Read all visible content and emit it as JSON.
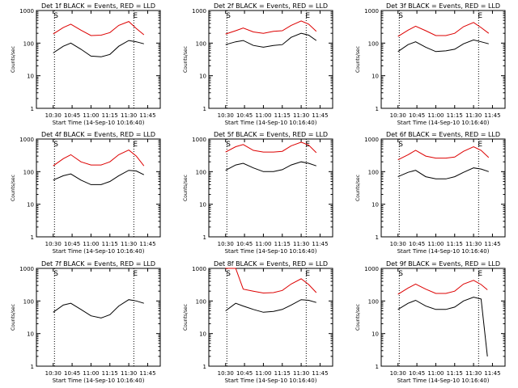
{
  "colors": {
    "background": "#ffffff",
    "axis": "#000000",
    "events": "#000000",
    "lld": "#dd0000"
  },
  "x_tick_labels": [
    "10:30",
    "10:45",
    "11:00",
    "11:15",
    "11:30",
    "11:45"
  ],
  "y_tick_labels": [
    "1",
    "10",
    "100",
    "1000"
  ],
  "ylabel": "Counts/sec",
  "xlabel": "Start Time (14-Sep-10 10:16:40)",
  "marker_labels": {
    "start": "S",
    "end": "E"
  },
  "chart_data": [
    {
      "type": "line",
      "title": "Det 1f  BLACK = Events, RED = LLD",
      "ylog": true,
      "ylim": [
        1,
        1000
      ],
      "x": [
        "10:30",
        "10:38",
        "10:44",
        "10:52",
        "11:00",
        "11:08",
        "11:15",
        "11:22",
        "11:30",
        "11:36",
        "11:42"
      ],
      "series": [
        {
          "name": "Events",
          "color": "#000000",
          "values": [
            50,
            80,
            100,
            65,
            40,
            38,
            45,
            80,
            120,
            110,
            95
          ]
        },
        {
          "name": "LLD",
          "color": "#dd0000",
          "values": [
            190,
            300,
            380,
            250,
            170,
            175,
            210,
            350,
            460,
            280,
            180
          ]
        }
      ]
    },
    {
      "type": "line",
      "title": "Det 2f  BLACK = Events, RED = LLD",
      "ylog": true,
      "ylim": [
        1,
        1000
      ],
      "x": [
        "10:30",
        "10:38",
        "10:44",
        "10:52",
        "11:00",
        "11:08",
        "11:15",
        "11:22",
        "11:30",
        "11:36",
        "11:42"
      ],
      "series": [
        {
          "name": "Events",
          "color": "#000000",
          "values": [
            90,
            110,
            120,
            85,
            75,
            85,
            90,
            150,
            200,
            175,
            120
          ]
        },
        {
          "name": "LLD",
          "color": "#dd0000",
          "values": [
            190,
            240,
            290,
            220,
            200,
            230,
            240,
            350,
            480,
            380,
            230
          ]
        }
      ]
    },
    {
      "type": "line",
      "title": "Det 3f  BLACK = Events, RED = LLD",
      "ylog": true,
      "ylim": [
        1,
        1000
      ],
      "x": [
        "10:30",
        "10:38",
        "10:44",
        "10:52",
        "11:00",
        "11:08",
        "11:15",
        "11:22",
        "11:30",
        "11:36",
        "11:42"
      ],
      "series": [
        {
          "name": "Events",
          "color": "#000000",
          "values": [
            55,
            90,
            110,
            75,
            55,
            58,
            65,
            95,
            125,
            110,
            95
          ]
        },
        {
          "name": "LLD",
          "color": "#dd0000",
          "values": [
            160,
            250,
            330,
            240,
            170,
            170,
            200,
            320,
            430,
            300,
            200
          ]
        }
      ]
    },
    {
      "type": "line",
      "title": "Det 4f  BLACK = Events, RED = LLD",
      "ylog": true,
      "ylim": [
        1,
        1000
      ],
      "x": [
        "10:30",
        "10:38",
        "10:44",
        "10:52",
        "11:00",
        "11:08",
        "11:15",
        "11:22",
        "11:30",
        "11:36",
        "11:42"
      ],
      "series": [
        {
          "name": "Events",
          "color": "#000000",
          "values": [
            55,
            75,
            85,
            55,
            40,
            40,
            50,
            75,
            110,
            105,
            80
          ]
        },
        {
          "name": "LLD",
          "color": "#dd0000",
          "values": [
            150,
            250,
            330,
            200,
            160,
            160,
            200,
            330,
            460,
            300,
            150
          ]
        }
      ]
    },
    {
      "type": "line",
      "title": "Det 5f  BLACK = Events, RED = LLD",
      "ylog": true,
      "ylim": [
        1,
        1000
      ],
      "x": [
        "10:30",
        "10:38",
        "10:44",
        "10:52",
        "11:00",
        "11:08",
        "11:15",
        "11:22",
        "11:30",
        "11:36",
        "11:42"
      ],
      "series": [
        {
          "name": "Events",
          "color": "#000000",
          "values": [
            110,
            160,
            180,
            130,
            100,
            100,
            115,
            160,
            200,
            180,
            150
          ]
        },
        {
          "name": "LLD",
          "color": "#dd0000",
          "values": [
            400,
            580,
            680,
            450,
            400,
            400,
            420,
            620,
            800,
            650,
            380
          ]
        }
      ]
    },
    {
      "type": "line",
      "title": "Det 6f  BLACK = Events, RED = LLD",
      "ylog": true,
      "ylim": [
        1,
        1000
      ],
      "x": [
        "10:30",
        "10:38",
        "10:44",
        "10:52",
        "11:00",
        "11:08",
        "11:15",
        "11:22",
        "11:30",
        "11:36",
        "11:42"
      ],
      "series": [
        {
          "name": "Events",
          "color": "#000000",
          "values": [
            70,
            95,
            110,
            70,
            60,
            60,
            70,
            95,
            130,
            120,
            100
          ]
        },
        {
          "name": "LLD",
          "color": "#dd0000",
          "values": [
            230,
            330,
            450,
            300,
            260,
            260,
            280,
            420,
            580,
            450,
            270
          ]
        }
      ]
    },
    {
      "type": "line",
      "title": "Det 7f  BLACK = Events, RED = LLD",
      "ylog": true,
      "ylim": [
        1,
        1000
      ],
      "x": [
        "10:30",
        "10:38",
        "10:44",
        "10:52",
        "11:00",
        "11:08",
        "11:15",
        "11:22",
        "11:30",
        "11:36",
        "11:42"
      ],
      "series": [
        {
          "name": "Events",
          "color": "#000000",
          "values": [
            45,
            75,
            85,
            55,
            35,
            30,
            38,
            70,
            110,
            100,
            85
          ]
        }
      ]
    },
    {
      "type": "line",
      "title": "Det 8f  BLACK = Events, RED = LLD",
      "ylog": true,
      "ylim": [
        1,
        1000
      ],
      "x": [
        "10:30",
        "10:38",
        "10:44",
        "10:52",
        "11:00",
        "11:08",
        "11:15",
        "11:22",
        "11:30",
        "11:36",
        "11:42"
      ],
      "series": [
        {
          "name": "Events",
          "color": "#000000",
          "values": [
            50,
            85,
            70,
            55,
            45,
            48,
            55,
            75,
            110,
            105,
            90
          ]
        },
        {
          "name": "LLD",
          "color": "#dd0000",
          "values": [
            1000,
            1000,
            230,
            200,
            175,
            180,
            210,
            330,
            480,
            320,
            180
          ]
        }
      ]
    },
    {
      "type": "line",
      "title": "Det 9f  BLACK = Events, RED = LLD",
      "ylog": true,
      "ylim": [
        1,
        1000
      ],
      "x": [
        "10:30",
        "10:38",
        "10:44",
        "10:52",
        "11:00",
        "11:08",
        "11:15",
        "11:22",
        "11:30",
        "11:36",
        "11:41"
      ],
      "series": [
        {
          "name": "Events",
          "color": "#000000",
          "values": [
            55,
            85,
            105,
            70,
            55,
            55,
            65,
            100,
            130,
            115,
            2
          ]
        },
        {
          "name": "LLD",
          "color": "#dd0000",
          "values": [
            160,
            250,
            330,
            230,
            170,
            170,
            200,
            330,
            430,
            320,
            220
          ]
        }
      ]
    }
  ]
}
